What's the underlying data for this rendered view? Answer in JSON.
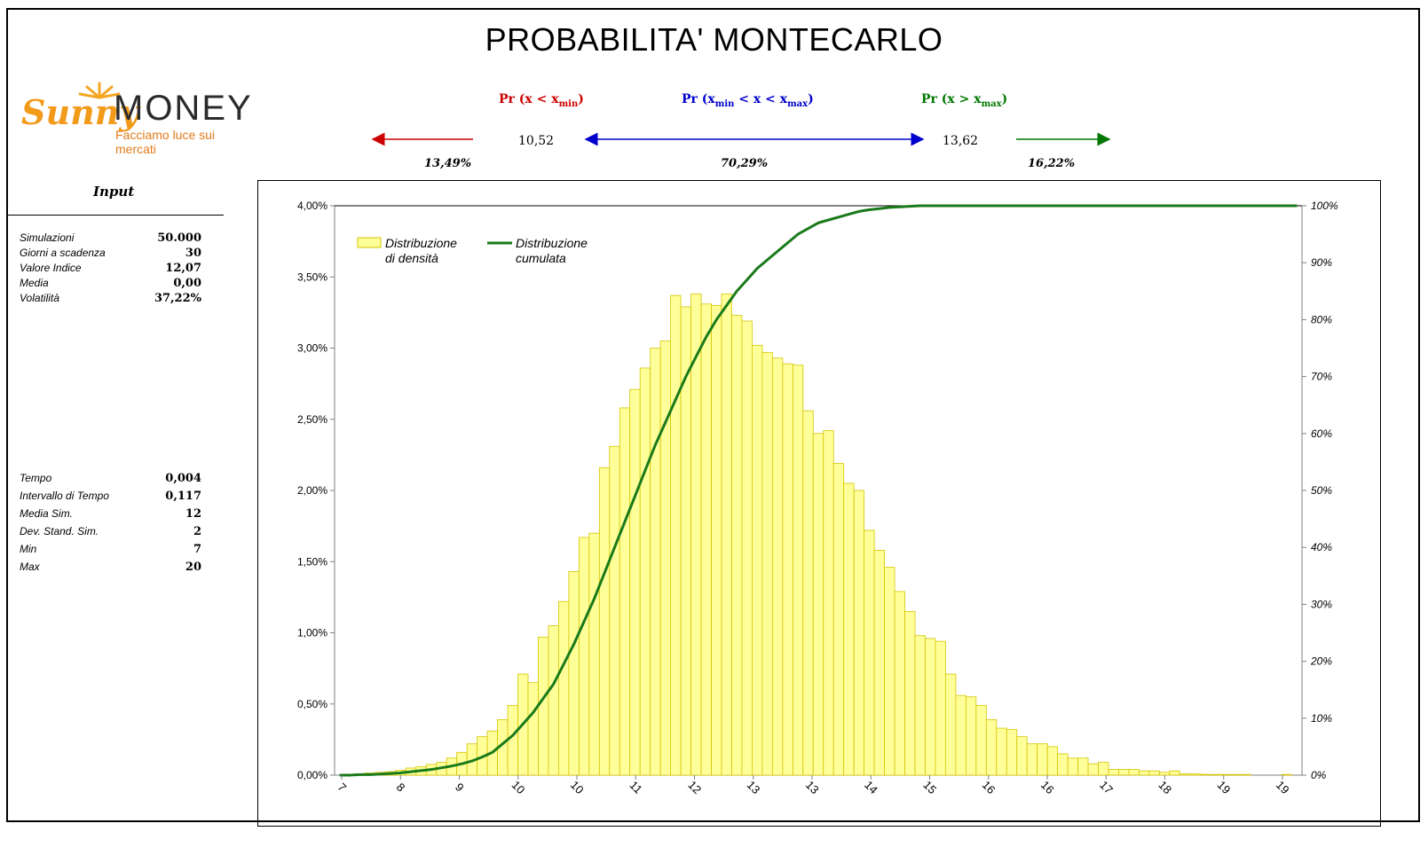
{
  "title": "PROBABILITA' MONTECARLO",
  "logo": {
    "brand": "Sunny",
    "brand2": "MONEY",
    "tagline": "Facciamo luce sui mercati"
  },
  "probability": {
    "left_label": "Pr (x < x",
    "left_sub": "min",
    "left_close": ")",
    "mid_label": "Pr (x",
    "mid_sub1": "min",
    "mid_mid": " < x < x",
    "mid_sub2": "max",
    "mid_close": ")",
    "right_label": "Pr (x > x",
    "right_sub": "max",
    "right_close": ")",
    "xmin": "10,52",
    "xmax": "13,62",
    "p_left": "13,49%",
    "p_mid": "70,29%",
    "p_right": "16,22%",
    "colors": {
      "left": "#cc0000",
      "mid": "#0000cc",
      "right": "#007700"
    }
  },
  "inputs": {
    "title": "Input",
    "rows": [
      {
        "k": "Simulazioni",
        "v": "50.000"
      },
      {
        "k": "Giorni a scadenza",
        "v": "30"
      },
      {
        "k": "Valore Indice",
        "v": "12,07"
      },
      {
        "k": "Media",
        "v": "0,00"
      },
      {
        "k": "Volatilità",
        "v": "37,22%"
      }
    ],
    "rows2": [
      {
        "k": "Tempo",
        "v": "0,004"
      },
      {
        "k": "Intervallo di Tempo",
        "v": "0,117"
      },
      {
        "k": "Media Sim.",
        "v": "12"
      },
      {
        "k": "Dev. Stand. Sim.",
        "v": "2"
      },
      {
        "k": "Min",
        "v": "7"
      },
      {
        "k": "Max",
        "v": "20"
      }
    ]
  },
  "chart_data": {
    "type": "bar",
    "legend": [
      "Distribuzione di densità",
      "Distribuzione cumulata"
    ],
    "legend_lines": [
      [
        "Distribuzione",
        "di densità"
      ],
      [
        "Distribuzione",
        "cumulata"
      ]
    ],
    "legend_placement": "top-left",
    "y_left_ticks": [
      "0,00%",
      "0,50%",
      "1,00%",
      "1,50%",
      "2,00%",
      "2,50%",
      "3,00%",
      "3,50%",
      "4,00%"
    ],
    "y_right_ticks": [
      "0%",
      "10%",
      "20%",
      "30%",
      "40%",
      "50%",
      "60%",
      "70%",
      "80%",
      "90%",
      "100%"
    ],
    "x_ticks": [
      "7",
      "8",
      "9",
      "10",
      "10",
      "11",
      "12",
      "13",
      "13",
      "14",
      "15",
      "16",
      "16",
      "17",
      "18",
      "19",
      "19"
    ],
    "ylim_left": [
      0,
      4
    ],
    "ylim_right": [
      0,
      100
    ],
    "colors": {
      "bar_fill": "#ffff99",
      "bar_stroke": "#d4c400",
      "cumulative": "#1a7a1a"
    },
    "density_pct": [
      0.0,
      0.005,
      0.01,
      0.015,
      0.02,
      0.025,
      0.035,
      0.05,
      0.06,
      0.075,
      0.09,
      0.12,
      0.16,
      0.22,
      0.27,
      0.31,
      0.39,
      0.49,
      0.71,
      0.65,
      0.97,
      1.05,
      1.22,
      1.43,
      1.67,
      1.7,
      2.16,
      2.31,
      2.58,
      2.71,
      2.86,
      3.0,
      3.05,
      3.37,
      3.29,
      3.38,
      3.31,
      3.3,
      3.38,
      3.23,
      3.19,
      3.02,
      2.97,
      2.93,
      2.89,
      2.88,
      2.56,
      2.4,
      2.42,
      2.19,
      2.05,
      2.0,
      1.72,
      1.58,
      1.46,
      1.29,
      1.15,
      0.98,
      0.96,
      0.94,
      0.71,
      0.56,
      0.55,
      0.49,
      0.39,
      0.33,
      0.32,
      0.27,
      0.22,
      0.22,
      0.2,
      0.15,
      0.12,
      0.12,
      0.08,
      0.09,
      0.04,
      0.04,
      0.04,
      0.03,
      0.03,
      0.02,
      0.03,
      0.01,
      0.01,
      0.005,
      0.005,
      0.005,
      0.005,
      0.005,
      0.0,
      0.0,
      0.0,
      0.005,
      0.0
    ],
    "cumulative_pct": [
      0.0,
      0.0,
      0.1,
      0.1,
      0.2,
      0.3,
      0.4,
      0.6,
      0.8,
      1.0,
      1.3,
      1.6,
      2.0,
      2.5,
      3.2,
      4.0,
      5.5,
      7.0,
      9.0,
      11.0,
      13.5,
      16.0,
      19.5,
      23.0,
      27.0,
      31.0,
      35.5,
      40.0,
      44.5,
      49.0,
      53.5,
      58.0,
      62.0,
      66.0,
      70.0,
      73.5,
      77.0,
      80.0,
      82.5,
      85.0,
      87.0,
      89.0,
      90.5,
      92.0,
      93.5,
      95.0,
      96.0,
      97.0,
      97.5,
      98.0,
      98.5,
      99.0,
      99.3,
      99.5,
      99.7,
      99.8,
      99.9,
      100.0,
      100.0,
      100.0,
      100.0,
      100.0,
      100.0,
      100.0,
      100.0,
      100.0,
      100.0,
      100.0,
      100.0,
      100.0,
      100.0,
      100.0,
      100.0,
      100.0,
      100.0,
      100.0,
      100.0,
      100.0,
      100.0,
      100.0,
      100.0,
      100.0,
      100.0,
      100.0,
      100.0,
      100.0,
      100.0,
      100.0,
      100.0,
      100.0,
      100.0,
      100.0,
      100.0,
      100.0,
      100.0
    ]
  }
}
